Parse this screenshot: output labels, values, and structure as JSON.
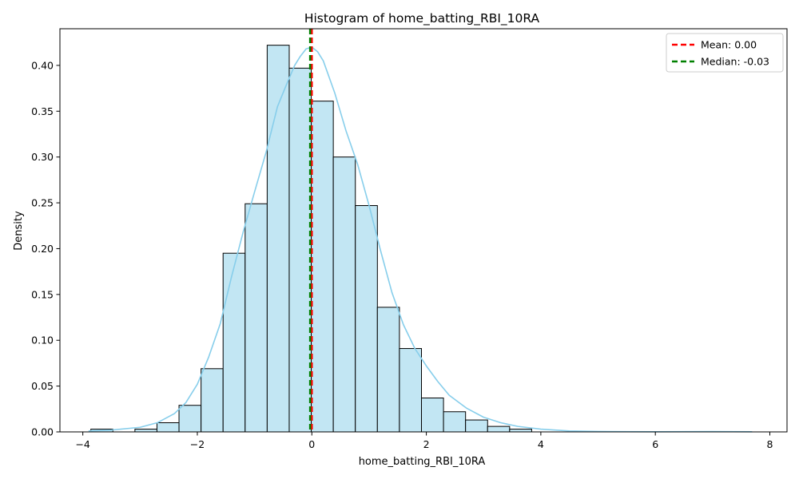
{
  "chart_data": {
    "type": "bar",
    "title": "Histogram of home_batting_RBI_10RA",
    "xlabel": "home_batting_RBI_10RA",
    "ylabel": "Density",
    "xlim": [
      -4.4,
      8.3
    ],
    "ylim": [
      0,
      0.44
    ],
    "xticks": [
      -4,
      -2,
      0,
      2,
      4,
      6,
      8
    ],
    "xtick_labels": [
      "−4",
      "−2",
      "0",
      "2",
      "4",
      "6",
      "8"
    ],
    "yticks": [
      0.0,
      0.05,
      0.1,
      0.15,
      0.2,
      0.25,
      0.3,
      0.35,
      0.4
    ],
    "ytick_labels": [
      "0.00",
      "0.05",
      "0.10",
      "0.15",
      "0.20",
      "0.25",
      "0.30",
      "0.35",
      "0.40"
    ],
    "bin_edges": [
      -3.86,
      -3.475,
      -3.09,
      -2.705,
      -2.32,
      -1.935,
      -1.55,
      -1.165,
      -0.78,
      -0.395,
      -0.01,
      0.375,
      0.76,
      1.145,
      1.53,
      1.915,
      2.3,
      2.685,
      3.07,
      3.455,
      3.84,
      4.225,
      4.61,
      4.995,
      5.38,
      5.765,
      6.15,
      6.535,
      6.92,
      7.305,
      7.69
    ],
    "densities": [
      0.003,
      0.0,
      0.003,
      0.01,
      0.029,
      0.069,
      0.195,
      0.249,
      0.422,
      0.397,
      0.361,
      0.3,
      0.247,
      0.136,
      0.091,
      0.037,
      0.022,
      0.013,
      0.006,
      0.003,
      0.0,
      0.0,
      0.0,
      0.0,
      0.0,
      0.0,
      0.0,
      0.0,
      0.0,
      0.0
    ],
    "kde": {
      "x": [
        -3.9,
        -3.5,
        -3.0,
        -2.7,
        -2.4,
        -2.2,
        -2.0,
        -1.8,
        -1.6,
        -1.4,
        -1.2,
        -1.0,
        -0.8,
        -0.6,
        -0.45,
        -0.3,
        -0.2,
        -0.1,
        0.0,
        0.1,
        0.2,
        0.4,
        0.6,
        0.8,
        1.0,
        1.2,
        1.4,
        1.6,
        1.8,
        2.0,
        2.2,
        2.4,
        2.7,
        3.0,
        3.3,
        3.6,
        4.0,
        4.5,
        5.0,
        5.5,
        6.0,
        6.5,
        7.0,
        7.69
      ],
      "y": [
        0.001,
        0.002,
        0.005,
        0.01,
        0.02,
        0.032,
        0.052,
        0.082,
        0.118,
        0.17,
        0.218,
        0.262,
        0.305,
        0.355,
        0.378,
        0.4,
        0.41,
        0.418,
        0.42,
        0.415,
        0.405,
        0.37,
        0.328,
        0.292,
        0.247,
        0.198,
        0.152,
        0.117,
        0.091,
        0.072,
        0.055,
        0.04,
        0.026,
        0.016,
        0.01,
        0.006,
        0.003,
        0.001,
        0.0005,
        0.0003,
        0.0002,
        0.0003,
        0.0004,
        0.0002
      ],
      "color": "#87ceeb"
    },
    "bar_fill": "#c2e6f3",
    "bar_edge": "#000000",
    "mean": {
      "value": 0.0,
      "label": "Mean: 0.00",
      "color": "#ff0000"
    },
    "median": {
      "value": -0.03,
      "label": "Median: -0.03",
      "color": "#008000"
    },
    "legend_position": "top-right",
    "grid": false
  }
}
